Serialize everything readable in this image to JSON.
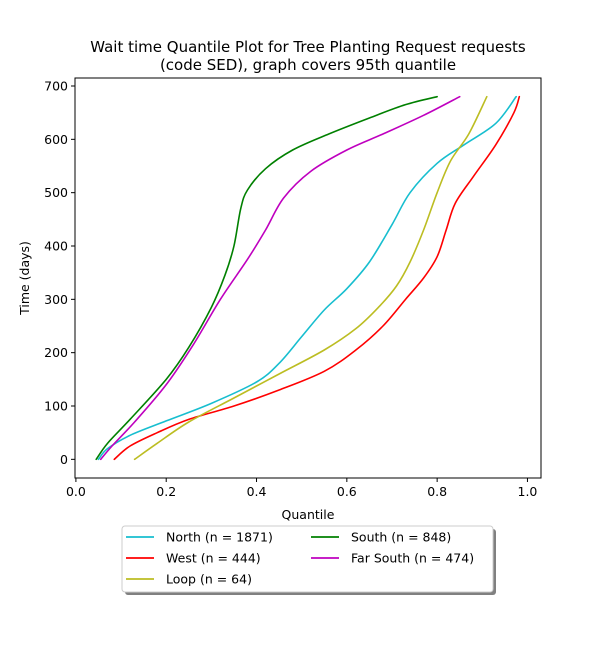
{
  "chart_data": {
    "type": "line",
    "title_lines": [
      "Wait time Quantile Plot for Tree Planting Request  requests",
      "(code SED), graph covers 95th quantile"
    ],
    "xlabel": "Quantile",
    "ylabel": "Time (days)",
    "xlim": [
      -0.002,
      1.03
    ],
    "ylim": [
      -35,
      715
    ],
    "xticks": [
      0.0,
      0.2,
      0.4,
      0.6,
      0.8,
      1.0
    ],
    "xtick_labels": [
      "0.0",
      "0.2",
      "0.4",
      "0.6",
      "0.8",
      "1.0"
    ],
    "yticks": [
      0,
      100,
      200,
      300,
      400,
      500,
      600,
      700
    ],
    "ytick_labels": [
      "0",
      "100",
      "200",
      "300",
      "400",
      "500",
      "600",
      "700"
    ],
    "grid": false,
    "legend_position": "below-center",
    "legend_columns": 2,
    "series": [
      {
        "name": "North (n = 1871)",
        "color": "#17becf",
        "points": [
          [
            0.05,
            0
          ],
          [
            0.07,
            20
          ],
          [
            0.12,
            45
          ],
          [
            0.2,
            72
          ],
          [
            0.3,
            105
          ],
          [
            0.4,
            145
          ],
          [
            0.45,
            180
          ],
          [
            0.5,
            230
          ],
          [
            0.55,
            280
          ],
          [
            0.6,
            320
          ],
          [
            0.65,
            370
          ],
          [
            0.7,
            440
          ],
          [
            0.74,
            500
          ],
          [
            0.8,
            555
          ],
          [
            0.86,
            590
          ],
          [
            0.93,
            630
          ],
          [
            0.975,
            680
          ]
        ]
      },
      {
        "name": "West (n = 444)",
        "color": "#ff0000",
        "points": [
          [
            0.085,
            0
          ],
          [
            0.12,
            25
          ],
          [
            0.18,
            50
          ],
          [
            0.25,
            75
          ],
          [
            0.35,
            100
          ],
          [
            0.45,
            130
          ],
          [
            0.55,
            165
          ],
          [
            0.62,
            205
          ],
          [
            0.68,
            250
          ],
          [
            0.73,
            300
          ],
          [
            0.77,
            340
          ],
          [
            0.8,
            380
          ],
          [
            0.82,
            430
          ],
          [
            0.84,
            480
          ],
          [
            0.88,
            530
          ],
          [
            0.93,
            590
          ],
          [
            0.97,
            650
          ],
          [
            0.982,
            680
          ]
        ]
      },
      {
        "name": "Loop (n = 64)",
        "color": "#bcbd22",
        "points": [
          [
            0.13,
            0
          ],
          [
            0.18,
            30
          ],
          [
            0.25,
            70
          ],
          [
            0.35,
            115
          ],
          [
            0.45,
            160
          ],
          [
            0.55,
            205
          ],
          [
            0.62,
            245
          ],
          [
            0.67,
            285
          ],
          [
            0.71,
            325
          ],
          [
            0.74,
            370
          ],
          [
            0.77,
            430
          ],
          [
            0.8,
            500
          ],
          [
            0.83,
            560
          ],
          [
            0.87,
            610
          ],
          [
            0.91,
            680
          ]
        ]
      },
      {
        "name": "South (n = 848)",
        "color": "#008000",
        "points": [
          [
            0.045,
            0
          ],
          [
            0.07,
            30
          ],
          [
            0.12,
            75
          ],
          [
            0.2,
            150
          ],
          [
            0.25,
            210
          ],
          [
            0.3,
            285
          ],
          [
            0.33,
            345
          ],
          [
            0.35,
            400
          ],
          [
            0.365,
            470
          ],
          [
            0.38,
            505
          ],
          [
            0.42,
            545
          ],
          [
            0.48,
            580
          ],
          [
            0.56,
            610
          ],
          [
            0.65,
            640
          ],
          [
            0.73,
            665
          ],
          [
            0.8,
            680
          ]
        ]
      },
      {
        "name": "Far South (n = 474)",
        "color": "#bf00bf",
        "points": [
          [
            0.055,
            0
          ],
          [
            0.08,
            25
          ],
          [
            0.13,
            70
          ],
          [
            0.2,
            140
          ],
          [
            0.26,
            215
          ],
          [
            0.32,
            300
          ],
          [
            0.38,
            375
          ],
          [
            0.42,
            430
          ],
          [
            0.46,
            490
          ],
          [
            0.52,
            540
          ],
          [
            0.6,
            580
          ],
          [
            0.68,
            610
          ],
          [
            0.77,
            645
          ],
          [
            0.85,
            680
          ]
        ]
      }
    ]
  }
}
